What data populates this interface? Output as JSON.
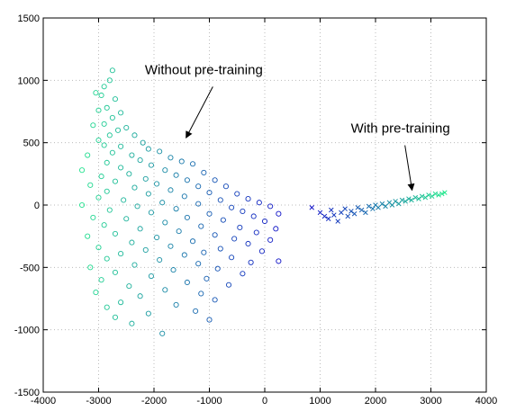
{
  "chart_data": {
    "type": "scatter",
    "xlim": [
      -4000,
      4000
    ],
    "ylim": [
      -1500,
      1500
    ],
    "xticks": [
      -4000,
      -3000,
      -2000,
      -1000,
      0,
      1000,
      2000,
      3000,
      4000
    ],
    "yticks": [
      -1500,
      -1000,
      -500,
      0,
      500,
      1000,
      1500
    ],
    "grid": true,
    "colormap": {
      "low": "#1010c8",
      "high": "#22e88c"
    },
    "series": [
      {
        "marker": "circle",
        "color_scale": "x-position: blue (right) to green (left)",
        "approx_extent": {
          "x": [
            -3400,
            300
          ],
          "y": [
            -1030,
            1080
          ]
        },
        "points": [
          [
            -2750,
            1080
          ],
          [
            -2800,
            1000
          ],
          [
            -2900,
            950
          ],
          [
            -3050,
            900
          ],
          [
            -2950,
            880
          ],
          [
            -2700,
            850
          ],
          [
            -2850,
            780
          ],
          [
            -3000,
            760
          ],
          [
            -2600,
            740
          ],
          [
            -2750,
            700
          ],
          [
            -2900,
            650
          ],
          [
            -3100,
            640
          ],
          [
            -2500,
            620
          ],
          [
            -2650,
            600
          ],
          [
            -2800,
            560
          ],
          [
            -2350,
            560
          ],
          [
            -3000,
            520
          ],
          [
            -2200,
            500
          ],
          [
            -2900,
            480
          ],
          [
            -2600,
            470
          ],
          [
            -2100,
            450
          ],
          [
            -1900,
            430
          ],
          [
            -2750,
            420
          ],
          [
            -3200,
            400
          ],
          [
            -2400,
            400
          ],
          [
            -1700,
            380
          ],
          [
            -2250,
            360
          ],
          [
            -1500,
            350
          ],
          [
            -2850,
            340
          ],
          [
            -2050,
            320
          ],
          [
            -1300,
            330
          ],
          [
            -2600,
            300
          ],
          [
            -3300,
            280
          ],
          [
            -1800,
            280
          ],
          [
            -1100,
            260
          ],
          [
            -2450,
            250
          ],
          [
            -1600,
            240
          ],
          [
            -2950,
            230
          ],
          [
            -2150,
            210
          ],
          [
            -900,
            200
          ],
          [
            -1400,
            200
          ],
          [
            -2700,
            190
          ],
          [
            -1950,
            170
          ],
          [
            -3150,
            160
          ],
          [
            -1200,
            150
          ],
          [
            -700,
            150
          ],
          [
            -2350,
            140
          ],
          [
            -1700,
            120
          ],
          [
            -2850,
            110
          ],
          [
            -1000,
            100
          ],
          [
            -500,
            90
          ],
          [
            -2100,
            90
          ],
          [
            -1450,
            70
          ],
          [
            -3000,
            60
          ],
          [
            -300,
            50
          ],
          [
            -2550,
            40
          ],
          [
            -800,
            40
          ],
          [
            -1850,
            20
          ],
          [
            -100,
            20
          ],
          [
            -1200,
            10
          ],
          [
            -3300,
            0
          ],
          [
            -2300,
            -10
          ],
          [
            100,
            -10
          ],
          [
            -600,
            -20
          ],
          [
            -1600,
            -30
          ],
          [
            -2800,
            -40
          ],
          [
            -400,
            -50
          ],
          [
            -2050,
            -60
          ],
          [
            -1000,
            -70
          ],
          [
            250,
            -70
          ],
          [
            -200,
            -90
          ],
          [
            -3100,
            -100
          ],
          [
            -1400,
            -100
          ],
          [
            -2500,
            -110
          ],
          [
            -750,
            -120
          ],
          [
            0,
            -130
          ],
          [
            -1800,
            -140
          ],
          [
            -2900,
            -160
          ],
          [
            -1150,
            -170
          ],
          [
            -450,
            -180
          ],
          [
            200,
            -190
          ],
          [
            -2250,
            -190
          ],
          [
            -1550,
            -210
          ],
          [
            -150,
            -220
          ],
          [
            -2700,
            -230
          ],
          [
            -900,
            -240
          ],
          [
            -3200,
            -250
          ],
          [
            -1950,
            -260
          ],
          [
            -550,
            -270
          ],
          [
            100,
            -280
          ],
          [
            -1300,
            -290
          ],
          [
            -2400,
            -300
          ],
          [
            -300,
            -310
          ],
          [
            -1700,
            -330
          ],
          [
            -3000,
            -340
          ],
          [
            -800,
            -350
          ],
          [
            -2150,
            -360
          ],
          [
            -50,
            -370
          ],
          [
            -1100,
            -380
          ],
          [
            -2600,
            -390
          ],
          [
            -1450,
            -400
          ],
          [
            -600,
            -420
          ],
          [
            -2850,
            -430
          ],
          [
            -1900,
            -440
          ],
          [
            250,
            -450
          ],
          [
            -250,
            -460
          ],
          [
            -1200,
            -470
          ],
          [
            -2350,
            -480
          ],
          [
            -3150,
            -500
          ],
          [
            -850,
            -510
          ],
          [
            -1650,
            -520
          ],
          [
            -2700,
            -540
          ],
          [
            -400,
            -550
          ],
          [
            -2050,
            -570
          ],
          [
            -1050,
            -590
          ],
          [
            -2950,
            -600
          ],
          [
            -1400,
            -620
          ],
          [
            -650,
            -640
          ],
          [
            -2450,
            -650
          ],
          [
            -1800,
            -680
          ],
          [
            -3050,
            -700
          ],
          [
            -1150,
            -710
          ],
          [
            -2250,
            -730
          ],
          [
            -900,
            -760
          ],
          [
            -2600,
            -780
          ],
          [
            -1600,
            -800
          ],
          [
            -2850,
            -820
          ],
          [
            -1250,
            -850
          ],
          [
            -2100,
            -870
          ],
          [
            -2700,
            -900
          ],
          [
            -1000,
            -920
          ],
          [
            -2400,
            -950
          ],
          [
            -1850,
            -1030
          ]
        ]
      },
      {
        "marker": "cross",
        "color_scale": "x-position: blue (left) to green (right)",
        "approx_extent": {
          "x": [
            850,
            3250
          ],
          "y": [
            -130,
            100
          ]
        },
        "points": [
          [
            850,
            -20
          ],
          [
            1000,
            -60
          ],
          [
            1080,
            -90
          ],
          [
            1150,
            -110
          ],
          [
            1200,
            -40
          ],
          [
            1250,
            -80
          ],
          [
            1320,
            -130
          ],
          [
            1380,
            -60
          ],
          [
            1450,
            -30
          ],
          [
            1500,
            -90
          ],
          [
            1560,
            -50
          ],
          [
            1620,
            -70
          ],
          [
            1680,
            -20
          ],
          [
            1750,
            -40
          ],
          [
            1820,
            -60
          ],
          [
            1880,
            -10
          ],
          [
            1950,
            -30
          ],
          [
            2000,
            0
          ],
          [
            2050,
            -20
          ],
          [
            2120,
            10
          ],
          [
            2180,
            -10
          ],
          [
            2250,
            20
          ],
          [
            2300,
            0
          ],
          [
            2360,
            30
          ],
          [
            2420,
            10
          ],
          [
            2480,
            40
          ],
          [
            2540,
            30
          ],
          [
            2600,
            50
          ],
          [
            2650,
            40
          ],
          [
            2720,
            60
          ],
          [
            2780,
            50
          ],
          [
            2840,
            70
          ],
          [
            2900,
            60
          ],
          [
            2960,
            80
          ],
          [
            3020,
            70
          ],
          [
            3080,
            90
          ],
          [
            3140,
            80
          ],
          [
            3200,
            90
          ],
          [
            3250,
            100
          ]
        ]
      }
    ],
    "annotations": [
      {
        "text": "Without pre-training",
        "at": [
          -1100,
          1050
        ],
        "arrow_to": [
          -1420,
          540
        ]
      },
      {
        "text": "With pre-training",
        "at": [
          2450,
          580
        ],
        "arrow_to": [
          2660,
          120
        ]
      }
    ]
  }
}
